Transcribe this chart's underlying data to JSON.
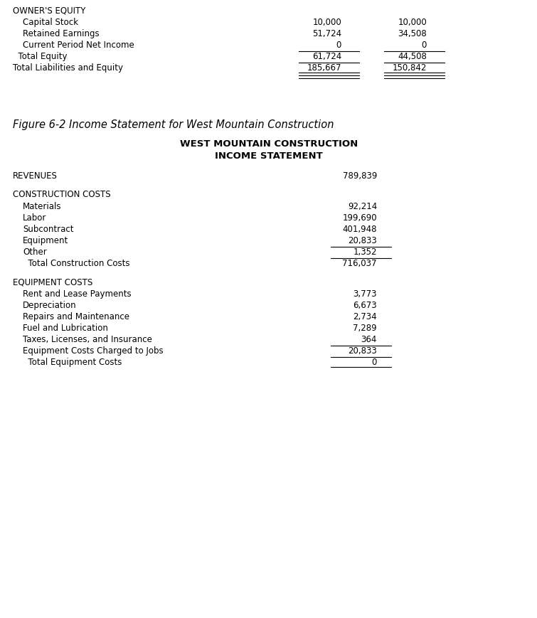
{
  "bg_color": "#ffffff",
  "text_color": "#000000",
  "figure_caption": "Figure 6-2 Income Statement for West Mountain Construction",
  "table_title1": "WEST MOUNTAIN CONSTRUCTION",
  "table_title2": "INCOME STATEMENT",
  "top_section": {
    "header": "OWNER'S EQUITY",
    "rows": [
      {
        "label": "Capital Stock",
        "col1": "10,000",
        "col2": "10,000",
        "indent": true,
        "line_above_cols": false,
        "double_under": false
      },
      {
        "label": "Retained Earnings",
        "col1": "51,724",
        "col2": "34,508",
        "indent": true,
        "line_above_cols": false,
        "double_under": false
      },
      {
        "label": "Current Period Net Income",
        "col1": "0",
        "col2": "0",
        "indent": true,
        "line_above_cols": false,
        "double_under": false
      },
      {
        "label": "  Total Equity",
        "col1": "61,724",
        "col2": "44,508",
        "indent": false,
        "line_above_cols": true,
        "double_under": false
      },
      {
        "label": "Total Liabilities and Equity",
        "col1": "185,667",
        "col2": "150,842",
        "indent": false,
        "line_above_cols": true,
        "double_under": true
      }
    ]
  },
  "income_section": {
    "revenues_label": "REVENUES",
    "revenues_value": "789,839",
    "construction_header": "CONSTRUCTION COSTS",
    "construction_rows": [
      {
        "label": "Materials",
        "value": "92,214",
        "line_above": false
      },
      {
        "label": "Labor",
        "value": "199,690",
        "line_above": false
      },
      {
        "label": "Subcontract",
        "value": "401,948",
        "line_above": false
      },
      {
        "label": "Equipment",
        "value": "20,833",
        "line_above": false
      },
      {
        "label": "Other",
        "value": "1,352",
        "line_above": true
      }
    ],
    "construction_total_label": "  Total Construction Costs",
    "construction_total_value": "716,037",
    "equipment_header": "EQUIPMENT COSTS",
    "equipment_rows": [
      {
        "label": "Rent and Lease Payments",
        "value": "3,773",
        "line_above": false
      },
      {
        "label": "Depreciation",
        "value": "6,673",
        "line_above": false
      },
      {
        "label": "Repairs and Maintenance",
        "value": "2,734",
        "line_above": false
      },
      {
        "label": "Fuel and Lubrication",
        "value": "7,289",
        "line_above": false
      },
      {
        "label": "Taxes, Licenses, and Insurance",
        "value": "364",
        "line_above": false
      },
      {
        "label": "Equipment Costs Charged to Jobs",
        "value": "20,833",
        "line_above": true
      }
    ],
    "equipment_total_label": "  Total Equipment Costs",
    "equipment_total_value": "0"
  },
  "font_size": 8.5,
  "font_size_caption": 10.5,
  "font_size_title": 9.5
}
